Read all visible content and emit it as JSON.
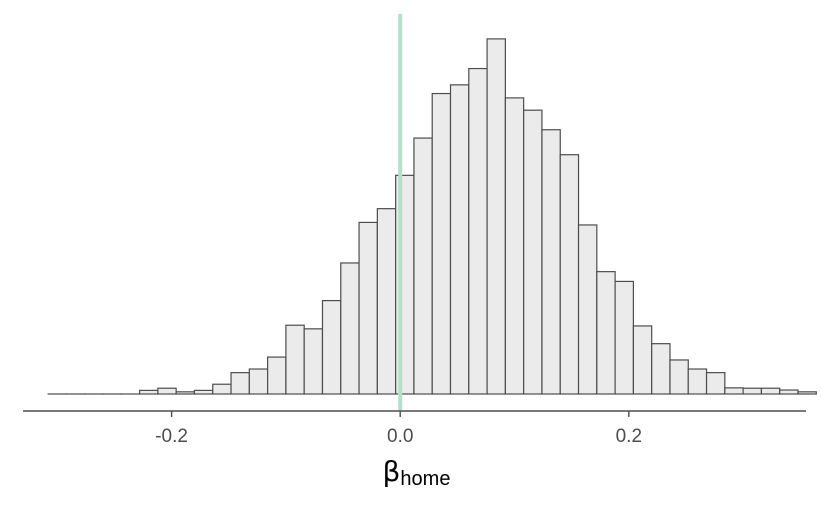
{
  "chart_data": {
    "type": "bar",
    "title": "",
    "xlabel": "β",
    "xlabel_subscript": "home",
    "ylabel": "",
    "xlim": [
      -0.33,
      0.355
    ],
    "ylim": [
      0,
      1
    ],
    "bin_width": 0.016,
    "bins_start": -0.308,
    "counts": [
      0.0,
      0.0,
      0.0,
      0.0,
      0.0,
      0.01,
      0.016,
      0.006,
      0.01,
      0.027,
      0.059,
      0.069,
      0.102,
      0.19,
      0.18,
      0.258,
      0.362,
      0.474,
      0.512,
      0.604,
      0.707,
      0.83,
      0.854,
      0.899,
      0.981,
      0.818,
      0.784,
      0.73,
      0.661,
      0.467,
      0.338,
      0.311,
      0.188,
      0.139,
      0.094,
      0.069,
      0.059,
      0.017,
      0.016,
      0.016,
      0.011,
      0.006
    ],
    "x_ticks": [
      -0.2,
      0.0,
      0.2
    ],
    "x_tick_labels": [
      "-0.2",
      "0.0",
      "0.2"
    ],
    "reference_line": 0.0,
    "colors": {
      "bar_fill": "#ebebeb",
      "bar_stroke": "#4d4d4d",
      "reference_line": "#b4e0cb",
      "axis": "#4d4d4d",
      "tick_label": "#4d4d4d"
    },
    "grid": false,
    "legend": "none"
  }
}
